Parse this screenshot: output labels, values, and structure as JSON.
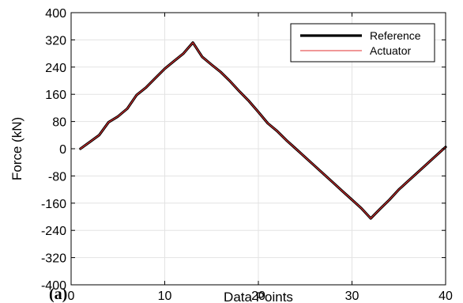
{
  "chart_data": {
    "type": "line",
    "xlabel": "Data Points",
    "ylabel": "Force (kN)",
    "panel_label": "(a)",
    "xlim": [
      0,
      40
    ],
    "ylim": [
      -400,
      400
    ],
    "xticks": [
      0,
      10,
      20,
      30,
      40
    ],
    "yticks": [
      400,
      320,
      240,
      160,
      80,
      0,
      -80,
      -160,
      -240,
      -320,
      -400
    ],
    "grid": true,
    "legend_position": "top-right",
    "series": [
      {
        "name": "Reference",
        "color": "#000000",
        "x": [
          1,
          2,
          3,
          4,
          5,
          6,
          7,
          8,
          9,
          10,
          11,
          12,
          13,
          14,
          15,
          16,
          17,
          18,
          19,
          20,
          21,
          22,
          23,
          24,
          25,
          26,
          27,
          28,
          29,
          30,
          31,
          32,
          33,
          34,
          35,
          36,
          37,
          38,
          39,
          40
        ],
        "y": [
          0,
          20,
          40,
          78,
          95,
          118,
          158,
          180,
          208,
          235,
          258,
          280,
          312,
          270,
          247,
          225,
          198,
          168,
          140,
          108,
          75,
          52,
          25,
          0,
          -25,
          -50,
          -75,
          -100,
          -125,
          -150,
          -175,
          -205,
          -177,
          -150,
          -120,
          -95,
          -70,
          -45,
          -20,
          5
        ]
      },
      {
        "name": "Actuator",
        "color": "#e03030",
        "x": [
          1,
          2,
          3,
          4,
          5,
          6,
          7,
          8,
          9,
          10,
          11,
          12,
          13,
          14,
          15,
          16,
          17,
          18,
          19,
          20,
          21,
          22,
          23,
          24,
          25,
          26,
          27,
          28,
          29,
          30,
          31,
          32,
          33,
          34,
          35,
          36,
          37,
          38,
          39,
          40
        ],
        "y": [
          0,
          20,
          40,
          78,
          95,
          118,
          158,
          180,
          208,
          235,
          258,
          280,
          312,
          270,
          247,
          225,
          198,
          168,
          140,
          108,
          75,
          52,
          25,
          0,
          -25,
          -50,
          -75,
          -100,
          -125,
          -150,
          -175,
          -205,
          -177,
          -150,
          -120,
          -95,
          -70,
          -45,
          -20,
          5
        ]
      }
    ]
  }
}
